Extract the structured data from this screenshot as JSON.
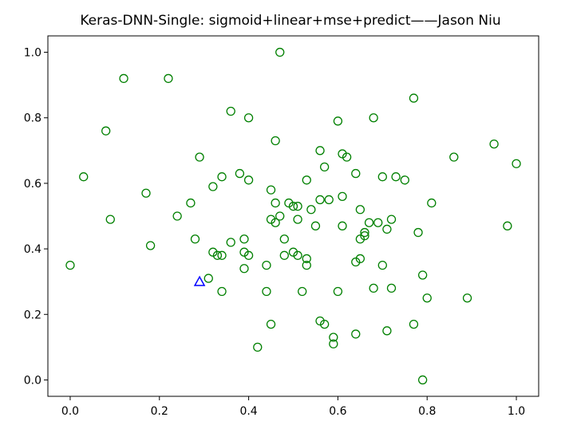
{
  "chart_data": {
    "type": "scatter",
    "title": "Keras-DNN-Single: sigmoid+linear+mse+predict——Jason Niu",
    "xlabel": "",
    "ylabel": "",
    "xlim": [
      -0.05,
      1.05
    ],
    "ylim": [
      -0.05,
      1.05
    ],
    "x_ticks": [
      0.0,
      0.2,
      0.4,
      0.6,
      0.8,
      1.0
    ],
    "y_ticks": [
      0.0,
      0.2,
      0.4,
      0.6,
      0.8,
      1.0
    ],
    "x_tick_labels": [
      "0.0",
      "0.2",
      "0.4",
      "0.6",
      "0.8",
      "1.0"
    ],
    "y_tick_labels": [
      "0.0",
      "0.2",
      "0.4",
      "0.6",
      "0.8",
      "1.0"
    ],
    "grid": false,
    "series": [
      {
        "marker": "hollow-circle",
        "color": "#008000",
        "points": [
          [
            0.47,
            1.0
          ],
          [
            0.12,
            0.92
          ],
          [
            0.22,
            0.92
          ],
          [
            0.77,
            0.86
          ],
          [
            0.36,
            0.82
          ],
          [
            0.4,
            0.8
          ],
          [
            0.6,
            0.79
          ],
          [
            0.68,
            0.8
          ],
          [
            0.08,
            0.76
          ],
          [
            0.46,
            0.73
          ],
          [
            0.95,
            0.72
          ],
          [
            0.56,
            0.7
          ],
          [
            0.61,
            0.69
          ],
          [
            0.86,
            0.68
          ],
          [
            0.29,
            0.68
          ],
          [
            0.62,
            0.68
          ],
          [
            1.0,
            0.66
          ],
          [
            0.57,
            0.65
          ],
          [
            0.03,
            0.62
          ],
          [
            0.38,
            0.63
          ],
          [
            0.64,
            0.63
          ],
          [
            0.7,
            0.62
          ],
          [
            0.73,
            0.62
          ],
          [
            0.75,
            0.61
          ],
          [
            0.34,
            0.62
          ],
          [
            0.32,
            0.59
          ],
          [
            0.4,
            0.61
          ],
          [
            0.53,
            0.61
          ],
          [
            0.45,
            0.58
          ],
          [
            0.61,
            0.56
          ],
          [
            0.17,
            0.57
          ],
          [
            0.27,
            0.54
          ],
          [
            0.46,
            0.54
          ],
          [
            0.49,
            0.54
          ],
          [
            0.51,
            0.53
          ],
          [
            0.5,
            0.53
          ],
          [
            0.56,
            0.55
          ],
          [
            0.58,
            0.55
          ],
          [
            0.54,
            0.52
          ],
          [
            0.81,
            0.54
          ],
          [
            0.24,
            0.5
          ],
          [
            0.09,
            0.49
          ],
          [
            0.45,
            0.49
          ],
          [
            0.47,
            0.5
          ],
          [
            0.51,
            0.49
          ],
          [
            0.65,
            0.52
          ],
          [
            0.46,
            0.48
          ],
          [
            0.67,
            0.48
          ],
          [
            0.69,
            0.48
          ],
          [
            0.72,
            0.49
          ],
          [
            0.55,
            0.47
          ],
          [
            0.61,
            0.47
          ],
          [
            0.71,
            0.46
          ],
          [
            0.78,
            0.45
          ],
          [
            0.98,
            0.47
          ],
          [
            0.66,
            0.45
          ],
          [
            0.66,
            0.44
          ],
          [
            0.65,
            0.43
          ],
          [
            0.28,
            0.43
          ],
          [
            0.39,
            0.43
          ],
          [
            0.48,
            0.43
          ],
          [
            0.18,
            0.41
          ],
          [
            0.36,
            0.42
          ],
          [
            0.32,
            0.39
          ],
          [
            0.33,
            0.38
          ],
          [
            0.34,
            0.38
          ],
          [
            0.39,
            0.39
          ],
          [
            0.4,
            0.38
          ],
          [
            0.48,
            0.38
          ],
          [
            0.5,
            0.39
          ],
          [
            0.51,
            0.38
          ],
          [
            0.53,
            0.37
          ],
          [
            0.65,
            0.37
          ],
          [
            0.64,
            0.36
          ],
          [
            0.53,
            0.35
          ],
          [
            0.44,
            0.35
          ],
          [
            0.7,
            0.35
          ],
          [
            0.0,
            0.35
          ],
          [
            0.39,
            0.34
          ],
          [
            0.79,
            0.32
          ],
          [
            0.31,
            0.31
          ],
          [
            0.34,
            0.27
          ],
          [
            0.44,
            0.27
          ],
          [
            0.52,
            0.27
          ],
          [
            0.6,
            0.27
          ],
          [
            0.68,
            0.28
          ],
          [
            0.72,
            0.28
          ],
          [
            0.8,
            0.25
          ],
          [
            0.89,
            0.25
          ],
          [
            0.45,
            0.17
          ],
          [
            0.56,
            0.18
          ],
          [
            0.57,
            0.17
          ],
          [
            0.77,
            0.17
          ],
          [
            0.59,
            0.13
          ],
          [
            0.64,
            0.14
          ],
          [
            0.71,
            0.15
          ],
          [
            0.59,
            0.11
          ],
          [
            0.42,
            0.1
          ],
          [
            0.79,
            0.0
          ]
        ]
      },
      {
        "marker": "hollow-triangle",
        "color": "#0000ff",
        "points": [
          [
            0.29,
            0.3
          ]
        ]
      }
    ]
  }
}
